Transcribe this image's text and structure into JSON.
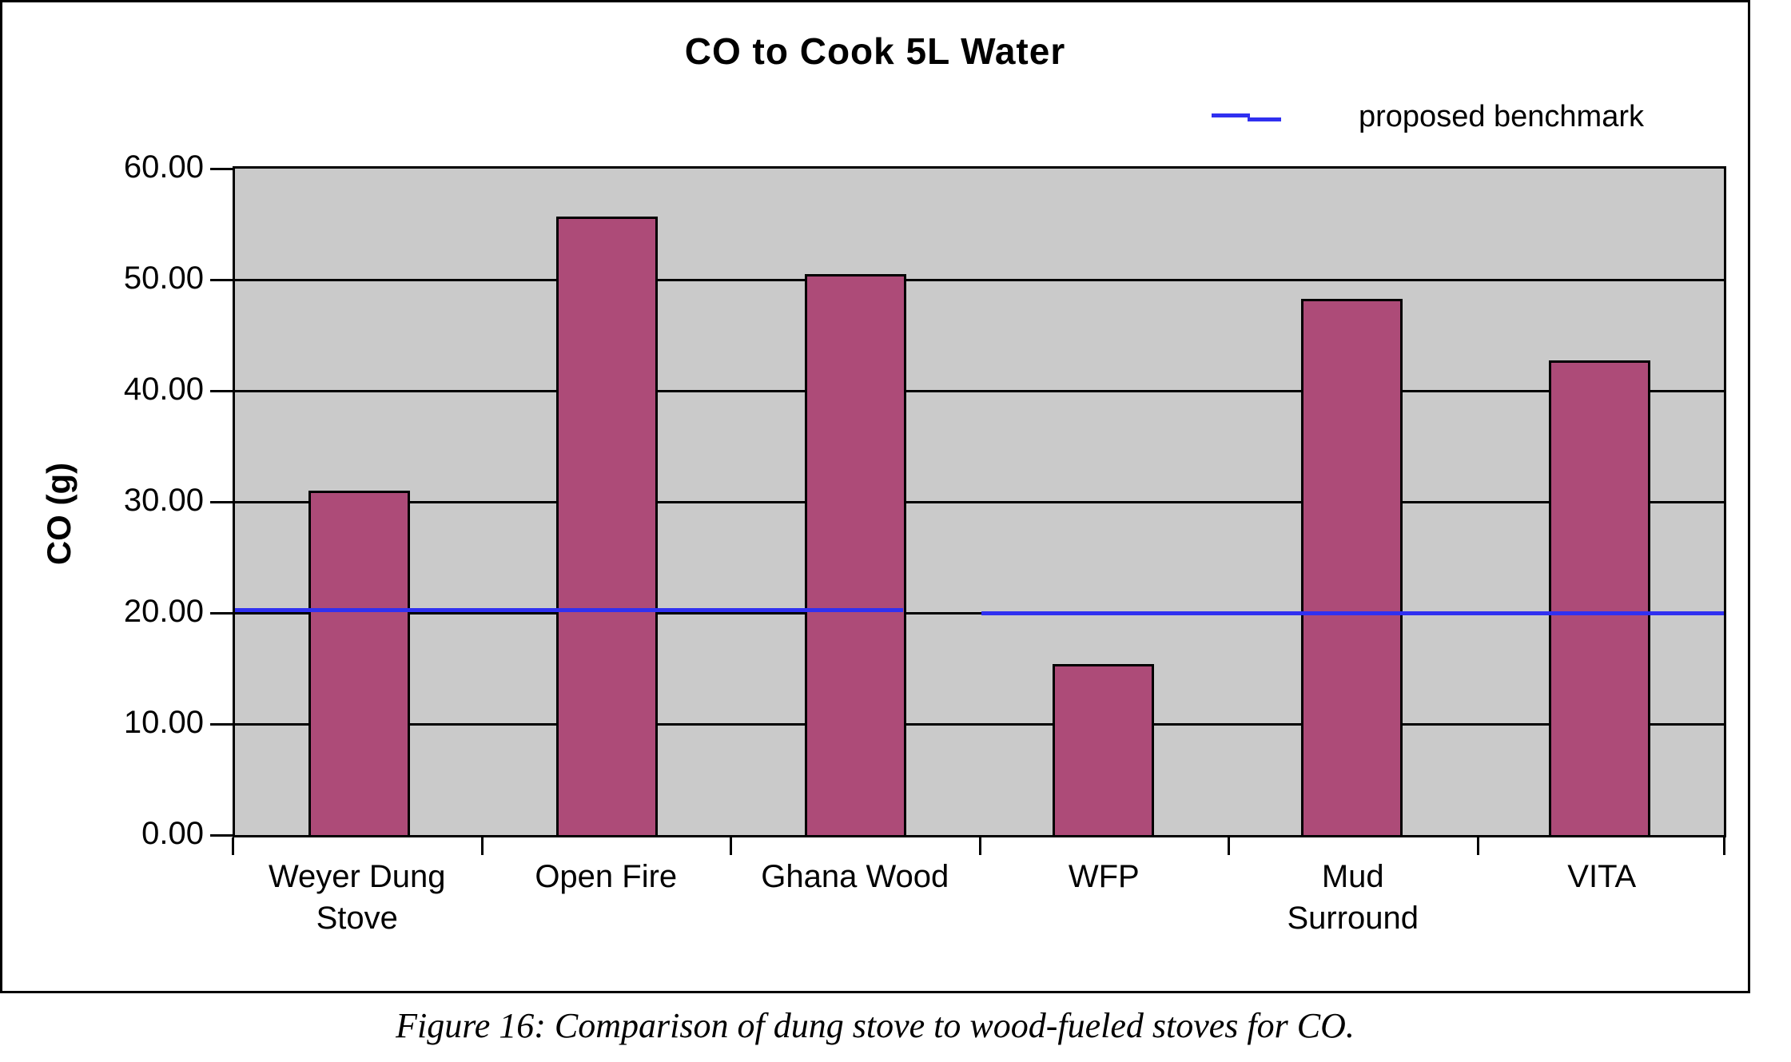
{
  "figure": {
    "title": "CO to Cook 5L Water",
    "legend_label": "proposed benchmark",
    "y_axis_title": "CO (g)",
    "caption": "Figure 16: Comparison of dung stove to wood-fueled stoves for CO."
  },
  "chart_data": {
    "type": "bar",
    "title": "CO to Cook 5L Water",
    "categories": [
      "Weyer Dung Stove",
      "Open Fire",
      "Ghana Wood",
      "WFP",
      "Mud Surround",
      "VITA"
    ],
    "category_label_lines": [
      [
        "Weyer Dung",
        "Stove"
      ],
      [
        "Open Fire"
      ],
      [
        "Ghana Wood"
      ],
      [
        "WFP"
      ],
      [
        "Mud",
        "Surround"
      ],
      [
        "VITA"
      ]
    ],
    "values": [
      31.0,
      55.7,
      50.5,
      15.4,
      48.3,
      42.7
    ],
    "benchmark": {
      "label": "proposed benchmark",
      "value": 20
    },
    "xlabel": "",
    "ylabel": "CO (g)",
    "ylim": [
      0,
      60
    ],
    "ytick_step": 10,
    "ytick_decimals": 2,
    "grid": true,
    "legend_position": "top-right",
    "colors": {
      "bar_fill": "#AD4B78",
      "bar_border": "#000000",
      "plot_background": "#CACACA",
      "gridline": "#000000",
      "benchmark_line": "#3030F0",
      "text": "#000000"
    }
  }
}
